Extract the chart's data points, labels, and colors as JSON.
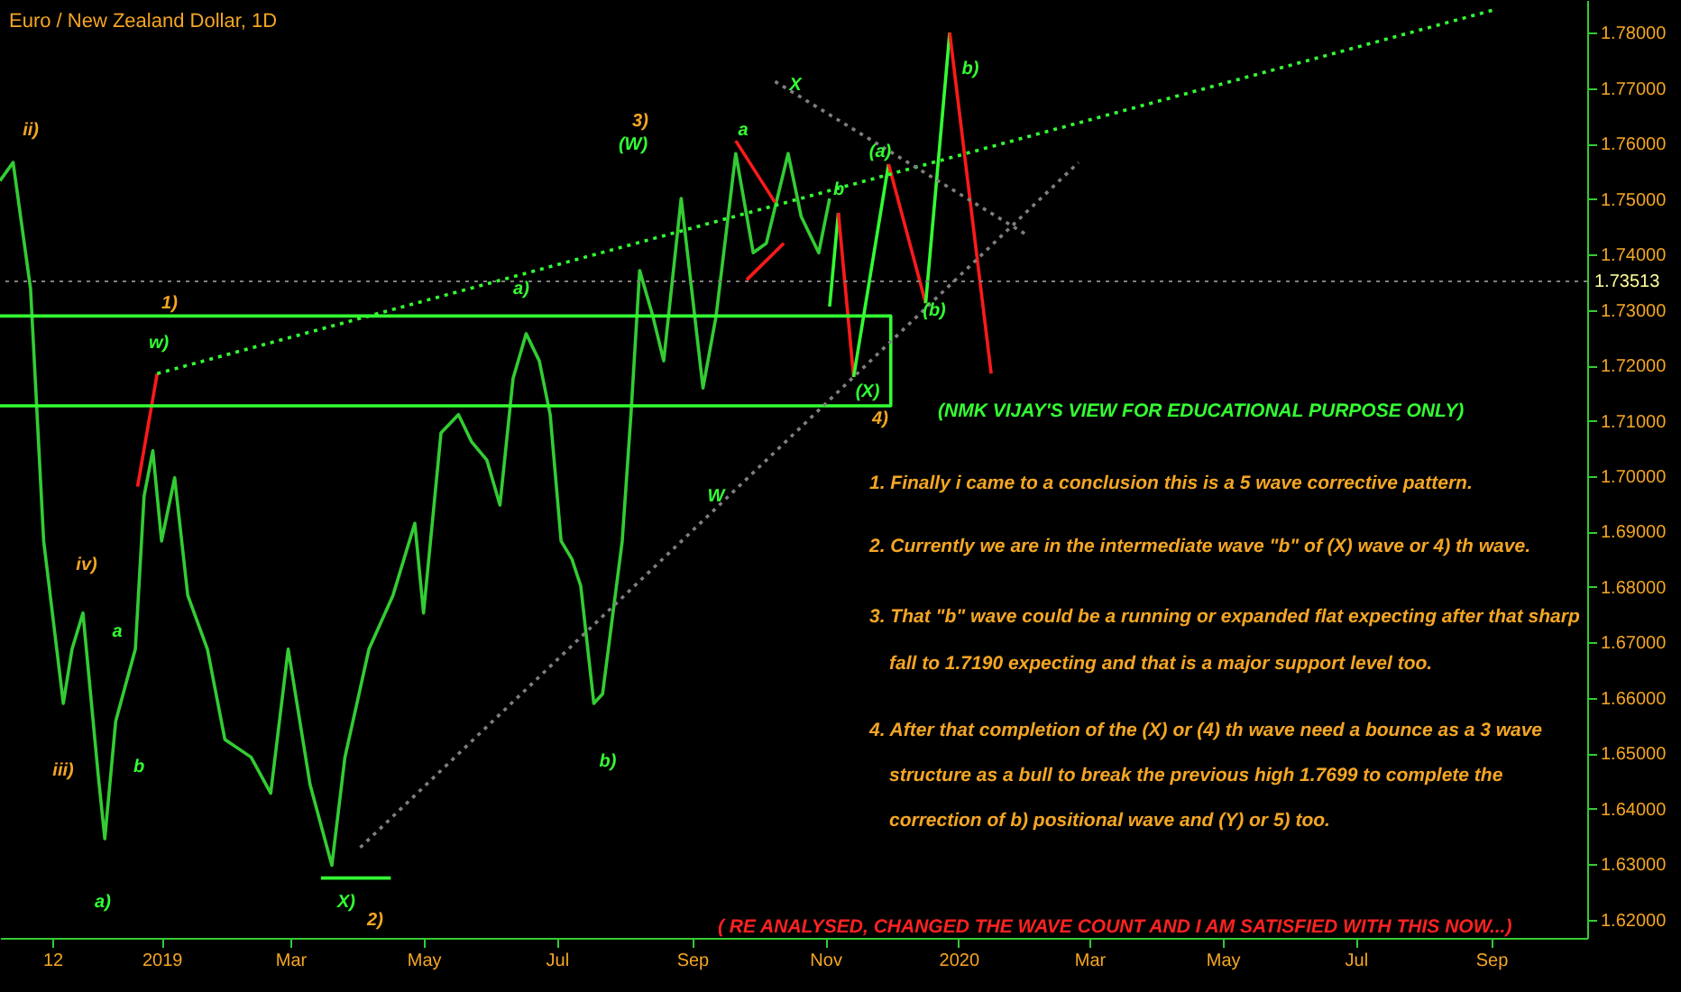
{
  "chart_data": {
    "type": "line",
    "title": "Euro / New Zealand Dollar, 1D",
    "xlim": [
      "2018-10-19",
      "2020-10-15"
    ],
    "xticks": [
      {
        "value": "2018-11-12",
        "label": "12"
      },
      {
        "value": "2019-01-01",
        "label": "2019"
      },
      {
        "value": "2019-03-01",
        "label": "Mar"
      },
      {
        "value": "2019-05-01",
        "label": "May"
      },
      {
        "value": "2019-07-01",
        "label": "Jul"
      },
      {
        "value": "2019-09-01",
        "label": "Sep"
      },
      {
        "value": "2019-11-01",
        "label": "Nov"
      },
      {
        "value": "2020-01-01",
        "label": "2020"
      },
      {
        "value": "2020-03-01",
        "label": "Mar"
      },
      {
        "value": "2020-05-01",
        "label": "May"
      },
      {
        "value": "2020-07-01",
        "label": "Jul"
      },
      {
        "value": "2020-09-01",
        "label": "Sep"
      }
    ],
    "ylim": [
      1.6167,
      1.7859
    ],
    "yticks": [
      {
        "value": 1.62,
        "label": "1.62000"
      },
      {
        "value": 1.63,
        "label": "1.63000"
      },
      {
        "value": 1.64,
        "label": "1.64000"
      },
      {
        "value": 1.65,
        "label": "1.65000"
      },
      {
        "value": 1.66,
        "label": "1.66000"
      },
      {
        "value": 1.67,
        "label": "1.67000"
      },
      {
        "value": 1.68,
        "label": "1.68000"
      },
      {
        "value": 1.69,
        "label": "1.69000"
      },
      {
        "value": 1.7,
        "label": "1.70000"
      },
      {
        "value": 1.71,
        "label": "1.71000"
      },
      {
        "value": 1.72,
        "label": "1.72000"
      },
      {
        "value": 1.73,
        "label": "1.73000"
      },
      {
        "value": 1.74,
        "label": "1.74000"
      },
      {
        "value": 1.75,
        "label": "1.75000"
      },
      {
        "value": 1.76,
        "label": "1.76000"
      },
      {
        "value": 1.77,
        "label": "1.77000"
      },
      {
        "value": 1.78,
        "label": "1.78000"
      }
    ],
    "grid": false,
    "series": [
      {
        "color": "#33cc33",
        "x": [
          "2018-10-19",
          "2018-10-25",
          "2018-11-02",
          "2018-11-08",
          "2018-11-17",
          "2018-11-21",
          "2018-11-26",
          "2018-12-03",
          "2018-12-06",
          "2018-12-11",
          "2018-12-20",
          "2018-12-24",
          "2018-12-28",
          "2019-01-01",
          "2019-01-07",
          "2019-01-13",
          "2019-01-22",
          "2019-01-30",
          "2019-02-11",
          "2019-02-20",
          "2019-02-28",
          "2019-03-10",
          "2019-03-20",
          "2019-03-26",
          "2019-04-06",
          "2019-04-17",
          "2019-04-27",
          "2019-05-01",
          "2019-05-09",
          "2019-05-17",
          "2019-05-23",
          "2019-05-30",
          "2019-06-05",
          "2019-06-11",
          "2019-06-17",
          "2019-06-23",
          "2019-06-28",
          "2019-07-03",
          "2019-07-08",
          "2019-07-12",
          "2019-07-18",
          "2019-07-22",
          "2019-07-31",
          "2019-08-04",
          "2019-08-08",
          "2019-08-14",
          "2019-08-19",
          "2019-08-27",
          "2019-09-06",
          "2019-09-12",
          "2019-09-21",
          "2019-09-29",
          "2019-10-05",
          "2019-10-15",
          "2019-10-21",
          "2019-10-29",
          "2019-11-03"
        ],
        "values": [
          1.7533,
          1.7566,
          1.7338,
          1.6883,
          1.659,
          1.6688,
          1.6753,
          1.646,
          1.6346,
          1.6558,
          1.6688,
          1.6964,
          1.7046,
          1.6883,
          1.6997,
          1.6785,
          1.6688,
          1.6525,
          1.6493,
          1.6428,
          1.6688,
          1.6444,
          1.6298,
          1.6493,
          1.6688,
          1.6785,
          1.6915,
          1.6753,
          1.7078,
          1.7111,
          1.7062,
          1.7029,
          1.6948,
          1.7176,
          1.7257,
          1.7208,
          1.7111,
          1.6883,
          1.685,
          1.6802,
          1.659,
          1.6607,
          1.6883,
          1.7111,
          1.7371,
          1.7289,
          1.7208,
          1.7501,
          1.7159,
          1.7289,
          1.7582,
          1.7403,
          1.742,
          1.7582,
          1.7468,
          1.7403,
          1.7501
        ]
      },
      {
        "color": "#33ff33",
        "x": [
          "2019-11-03",
          "2019-11-07"
        ],
        "values": [
          1.7306,
          1.7475
        ]
      },
      {
        "color": "#ff1a1a",
        "x": [
          "2019-11-07",
          "2019-11-14"
        ],
        "values": [
          1.7475,
          1.7179
        ]
      },
      {
        "color": "#33ff33",
        "x": [
          "2019-11-14",
          "2019-11-30"
        ],
        "values": [
          1.7179,
          1.7563
        ]
      },
      {
        "color": "#ff1a1a",
        "x": [
          "2019-11-30",
          "2019-12-17"
        ],
        "values": [
          1.7563,
          1.7312
        ]
      },
      {
        "color": "#33ff33",
        "x": [
          "2019-12-17",
          "2019-12-28"
        ],
        "values": [
          1.7312,
          1.78
        ]
      },
      {
        "color": "#ff1a1a",
        "x": [
          "2019-12-28",
          "2020-01-16"
        ],
        "values": [
          1.78,
          1.7185
        ]
      },
      {
        "color": "#ff1a1a",
        "x": [
          "2018-12-21",
          "2018-12-30"
        ],
        "values": [
          1.6981,
          1.7185
        ]
      },
      {
        "color": "#ff1a1a",
        "x": [
          "2019-09-21",
          "2019-10-09"
        ],
        "values": [
          1.7605,
          1.7494
        ]
      },
      {
        "color": "#ff1a1a",
        "x": [
          "2019-09-26",
          "2019-10-13"
        ],
        "values": [
          1.7354,
          1.742
        ]
      },
      {
        "color": "#33ff33",
        "x": [
          "2018-10-19",
          "2019-12-01",
          "2019-12-01",
          "2018-10-19"
        ],
        "values": [
          1.7289,
          1.7289,
          1.7127,
          1.7127
        ]
      },
      {
        "color": "#33ff33",
        "x": [
          "2019-03-15",
          "2019-04-16"
        ],
        "values": [
          1.6275,
          1.6275
        ]
      },
      {
        "color": "#33ff33",
        "line_style": "dotted",
        "x": [
          "2018-12-30",
          "2020-09-03"
        ],
        "values": [
          1.7185,
          1.7842
        ]
      },
      {
        "color": "#7f7f7f",
        "line_style": "dotted",
        "x": [
          "2019-04-02",
          "2020-02-25"
        ],
        "values": [
          1.633,
          1.7566
        ]
      },
      {
        "color": "#7f7f7f",
        "line_style": "dotted",
        "x": [
          "2019-10-09",
          "2020-02-01"
        ],
        "values": [
          1.7712,
          1.7436
        ]
      }
    ],
    "ref_lines": [
      {
        "axis": "y",
        "value": 1.73513,
        "label": "1.73513",
        "color": "#808080",
        "line_style": "dotted"
      }
    ],
    "annotations": [
      "ii)",
      "iii)",
      "iv)",
      "a)",
      "a",
      "b",
      "w)",
      "1)",
      "X)",
      "2)",
      "a)",
      "b)",
      "3)",
      "(W)",
      "W",
      "a",
      "X",
      "b",
      "(X)",
      "4)",
      "(a)",
      "(b)",
      "b)",
      "(NMK VIJAY'S VIEW FOR EDUCATIONAL PURPOSE ONLY)",
      "1. Finally i came to a conclusion this is a 5 wave corrective pattern.",
      "2. Currently we are in the intermediate wave \"b\" of (X) wave or 4) th wave.",
      "3. That \"b\" wave could be a running or expanded flat expecting after that sharp",
      "fall to 1.7190 expecting and that is a major support level too.",
      "4. After that completion of the (X) or (4) th wave need a bounce as a 3 wave",
      "structure as a bull to break the previous high 1.7699 to complete the",
      "correction of b) positional wave and (Y) or 5) too.",
      "( RE ANALYSED, CHANGED THE WAVE COUNT AND I AM SATISFIED WITH THIS NOW...)"
    ]
  }
}
